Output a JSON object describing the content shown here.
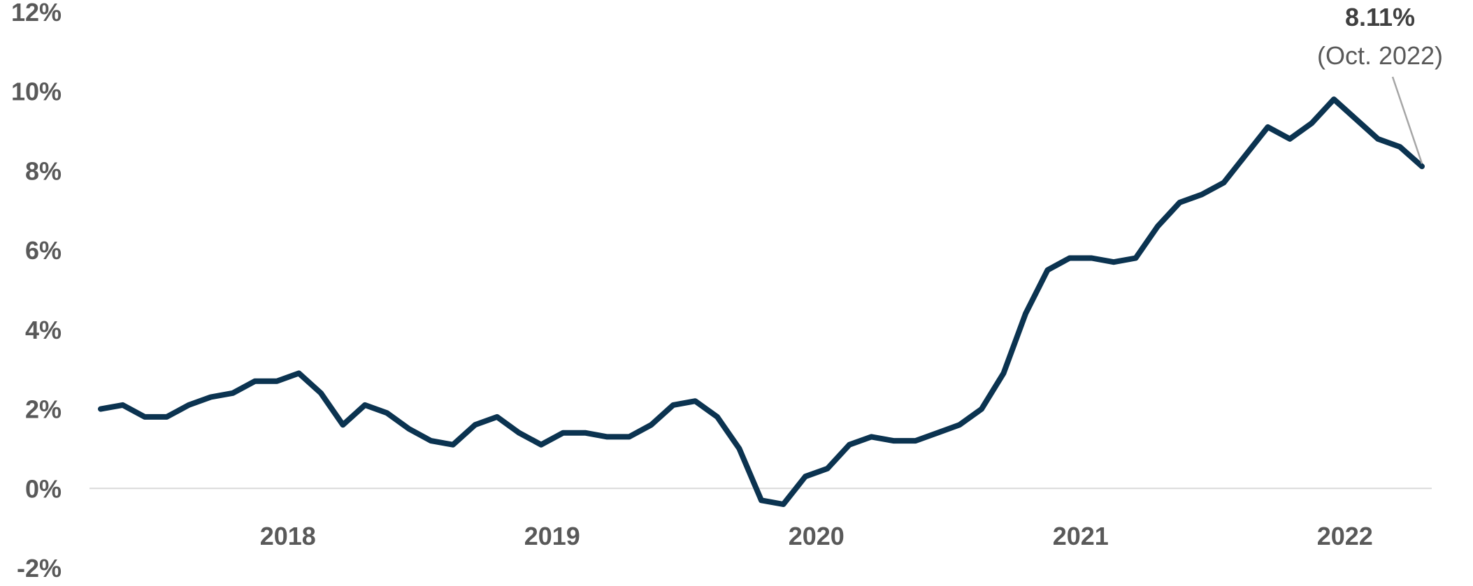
{
  "chart_data": {
    "type": "line",
    "title": "",
    "xlabel": "",
    "ylabel": "",
    "ylim": [
      -2,
      12
    ],
    "y_tick_labels": [
      "12%",
      "10%",
      "8%",
      "6%",
      "4%",
      "2%",
      "0%",
      "-2%"
    ],
    "y_tick_values": [
      12,
      10,
      8,
      6,
      4,
      2,
      0,
      -2
    ],
    "x_tick_labels": [
      "2018",
      "2019",
      "2020",
      "2021",
      "2022"
    ],
    "grid": false,
    "zero_line": true,
    "colors": {
      "line": "#0b3350",
      "zero_line": "#d9d9d9",
      "leader": "#a6a6a6",
      "text": "#595959"
    },
    "annotation": {
      "value": "8.11%",
      "date": "(Oct. 2022)"
    },
    "series": [
      {
        "x": [
          "2017-10",
          "2017-11",
          "2017-12",
          "2018-01",
          "2018-02",
          "2018-03",
          "2018-04",
          "2018-05",
          "2018-06",
          "2018-07",
          "2018-08",
          "2018-09",
          "2018-10",
          "2018-11",
          "2018-12",
          "2019-01",
          "2019-02",
          "2019-03",
          "2019-04",
          "2019-05",
          "2019-06",
          "2019-07",
          "2019-08",
          "2019-09",
          "2019-10",
          "2019-11",
          "2019-12",
          "2020-01",
          "2020-02",
          "2020-03",
          "2020-04",
          "2020-05",
          "2020-06",
          "2020-07",
          "2020-08",
          "2020-09",
          "2020-10",
          "2020-11",
          "2020-12",
          "2021-01",
          "2021-02",
          "2021-03",
          "2021-04",
          "2021-05",
          "2021-06",
          "2021-07",
          "2021-08",
          "2021-09",
          "2021-10",
          "2021-11",
          "2021-12",
          "2022-01",
          "2022-02",
          "2022-03",
          "2022-04",
          "2022-05",
          "2022-06",
          "2022-07",
          "2022-08",
          "2022-09",
          "2022-10"
        ],
        "values": [
          2.0,
          2.1,
          1.8,
          1.8,
          2.1,
          2.3,
          2.4,
          2.7,
          2.7,
          2.9,
          2.4,
          1.6,
          2.1,
          1.9,
          1.5,
          1.2,
          1.1,
          1.6,
          1.8,
          1.4,
          1.1,
          1.4,
          1.4,
          1.3,
          1.3,
          1.6,
          2.1,
          2.2,
          1.8,
          1.0,
          -0.3,
          -0.4,
          0.3,
          0.5,
          1.1,
          1.3,
          1.2,
          1.2,
          1.4,
          1.6,
          2.0,
          2.9,
          4.4,
          5.5,
          5.8,
          5.8,
          5.7,
          5.8,
          6.6,
          7.2,
          7.4,
          7.7,
          8.4,
          9.1,
          8.8,
          9.2,
          9.8,
          9.3,
          8.8,
          8.6,
          8.11
        ]
      }
    ]
  }
}
